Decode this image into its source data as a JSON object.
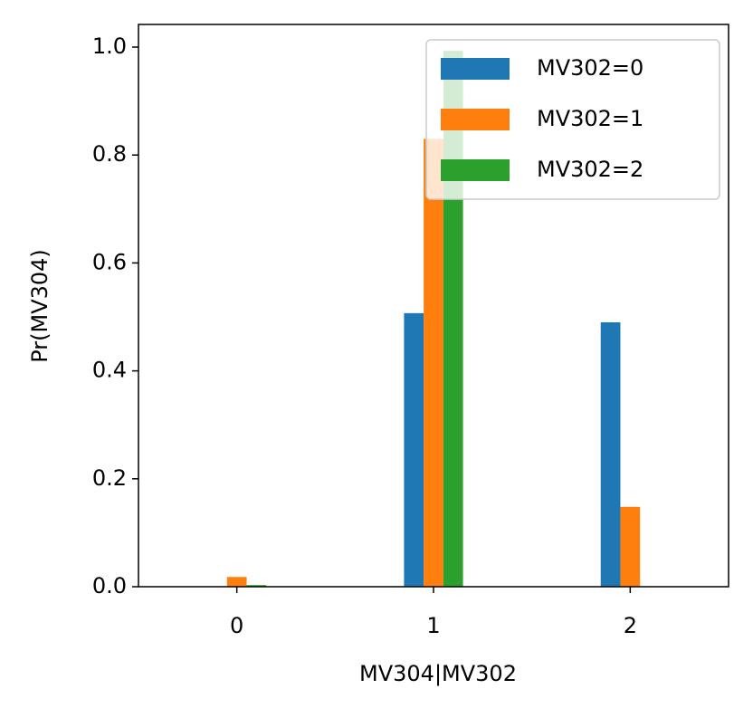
{
  "chart_data": {
    "type": "bar",
    "x_label": "MV304|MV302",
    "y_label": "Pr(MV304)",
    "categories": [
      "0",
      "1",
      "2"
    ],
    "series": [
      {
        "name": "MV302=0",
        "color": "#1f77b4",
        "values": [
          0,
          0.507,
          0.49
        ]
      },
      {
        "name": "MV302=1",
        "color": "#ff7f0e",
        "values": [
          0.018,
          0.83,
          0.148
        ]
      },
      {
        "name": "MV302=2",
        "color": "#2ca02c",
        "values": [
          0.003,
          0.993,
          0
        ]
      }
    ],
    "ylim": [
      0,
      1.042
    ],
    "yticks": [
      {
        "value": 0,
        "label": "0.0"
      },
      {
        "value": 0.2,
        "label": "0.2"
      },
      {
        "value": 0.4,
        "label": "0.4"
      },
      {
        "value": 0.6,
        "label": "0.6"
      },
      {
        "value": 0.8,
        "label": "0.8"
      },
      {
        "value": 1,
        "label": "1.0"
      }
    ],
    "legend": "upper right",
    "grid": false
  }
}
